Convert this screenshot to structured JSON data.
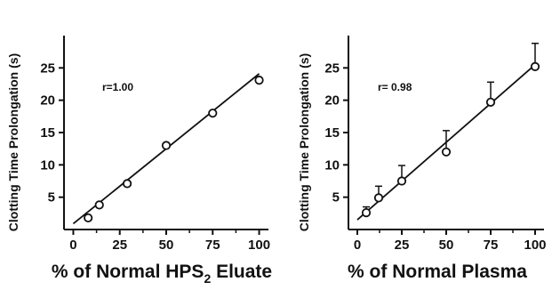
{
  "chart_data": [
    {
      "type": "scatter",
      "title": "",
      "ylabel": "Clotting Time Prolongation (s)",
      "xlabel_parts": {
        "pre": "% of Normal HPS",
        "sub": "2",
        "post": " Eluate"
      },
      "annotation": "r=1.00",
      "x_ticks": [
        "0",
        "25",
        "50",
        "75",
        "100"
      ],
      "y_ticks": [
        "5",
        "10",
        "15",
        "20",
        "25"
      ],
      "xlim": [
        -5,
        105
      ],
      "ylim": [
        0,
        30
      ],
      "points": [
        {
          "x": 8,
          "y": 1.8
        },
        {
          "x": 14,
          "y": 3.8
        },
        {
          "x": 29,
          "y": 7.1
        },
        {
          "x": 50,
          "y": 13
        },
        {
          "x": 75,
          "y": 18
        },
        {
          "x": 100,
          "y": 23.1
        }
      ],
      "fit_line": {
        "x0": 0,
        "y0": 0.9,
        "x1": 100,
        "y1": 24.1
      },
      "grid": false
    },
    {
      "type": "scatter",
      "title": "",
      "ylabel": "Clotting Time Prolongation (s)",
      "xlabel_parts": {
        "pre": "% of Normal Plasma",
        "sub": "",
        "post": ""
      },
      "annotation": "r= 0.98",
      "x_ticks": [
        "0",
        "25",
        "50",
        "75",
        "100"
      ],
      "y_ticks": [
        "5",
        "10",
        "15",
        "20",
        "25"
      ],
      "xlim": [
        -5,
        105
      ],
      "ylim": [
        0,
        30
      ],
      "points": [
        {
          "x": 5,
          "y": 2.6,
          "err": 0.9
        },
        {
          "x": 12,
          "y": 4.9,
          "err": 1.8
        },
        {
          "x": 25,
          "y": 7.5,
          "err": 2.4
        },
        {
          "x": 50,
          "y": 12,
          "err": 3.3
        },
        {
          "x": 75,
          "y": 19.7,
          "err": 3.1
        },
        {
          "x": 100,
          "y": 25.2,
          "err": 3.6
        }
      ],
      "fit_line": {
        "x0": 0,
        "y0": 1.5,
        "x1": 100,
        "y1": 25.5
      },
      "grid": false
    }
  ]
}
